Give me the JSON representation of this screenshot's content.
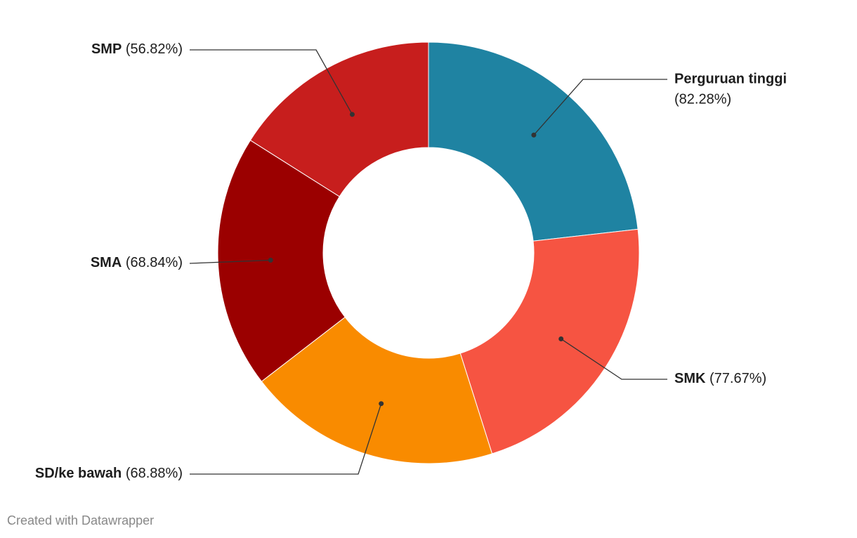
{
  "chart_data": {
    "type": "donut",
    "categories": [
      "Perguruan tinggi",
      "SMK",
      "SD/ke bawah",
      "SMA",
      "SMP"
    ],
    "values": [
      82.28,
      77.67,
      68.88,
      68.84,
      56.82
    ],
    "value_labels": [
      "(82.28%)",
      "(77.67%)",
      "(68.88%)",
      "(68.84%)",
      "(56.82%)"
    ],
    "colors": [
      "#1f83a2",
      "#f65442",
      "#f98b00",
      "#9b0000",
      "#c71e1d"
    ],
    "footer": "Created with Datawrapper"
  }
}
